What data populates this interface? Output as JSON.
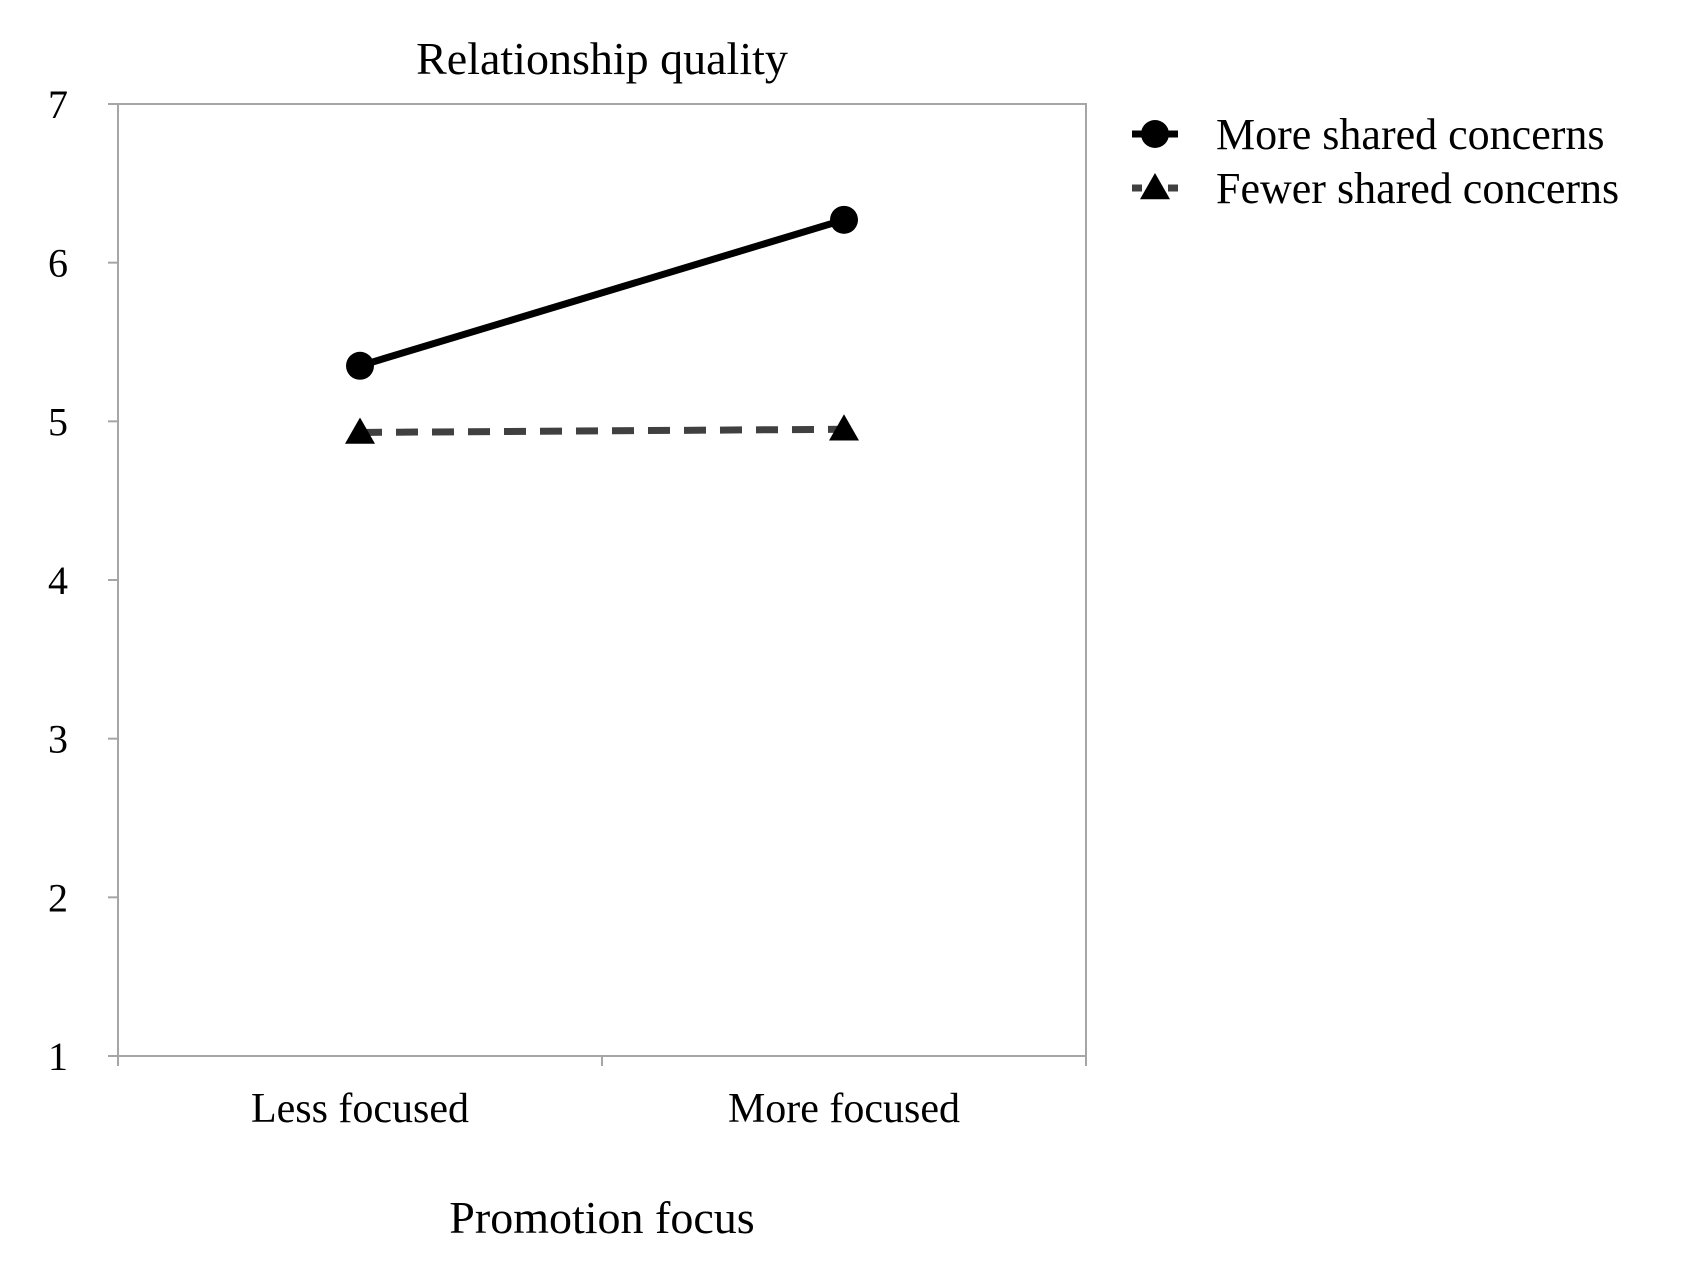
{
  "chart_data": {
    "type": "line",
    "title": "Relationship quality",
    "xlabel": "Promotion focus",
    "ylabel": "",
    "categories": [
      "Less focused",
      "More focused"
    ],
    "ylim": [
      1,
      7
    ],
    "yticks": [
      1,
      2,
      3,
      4,
      5,
      6,
      7
    ],
    "grid": false,
    "legend_position": "right",
    "series": [
      {
        "name": "More shared concerns",
        "values": [
          5.35,
          6.27
        ],
        "marker": "circle",
        "line_style": "solid",
        "color": "#000000"
      },
      {
        "name": "Fewer shared concerns",
        "values": [
          4.93,
          4.95
        ],
        "marker": "triangle",
        "line_style": "dashed",
        "color": "#404040"
      }
    ]
  }
}
